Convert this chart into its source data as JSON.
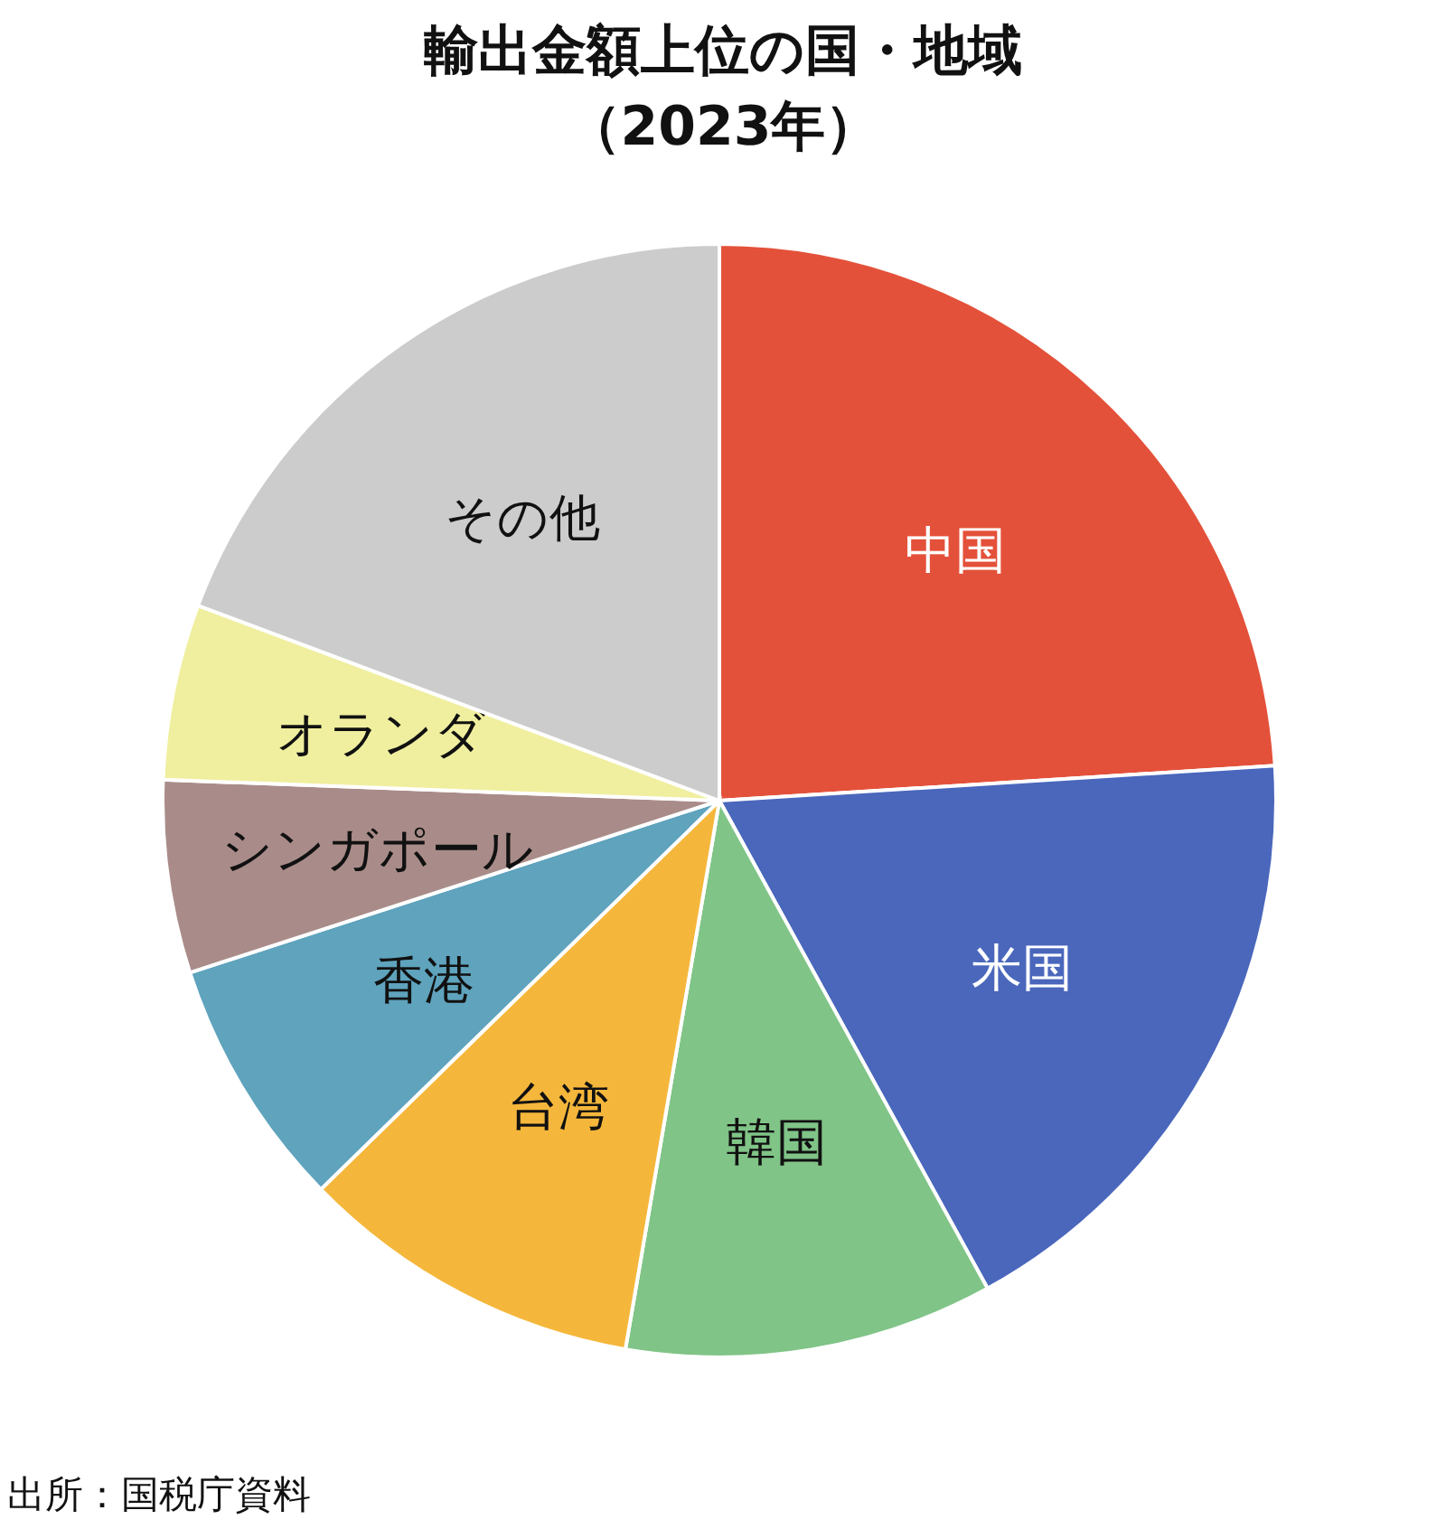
{
  "chart_data": {
    "type": "pie",
    "title": "輸出金額上位の国・地域",
    "subtitle": "（2023年）",
    "categories": [
      "中国",
      "米国",
      "韓国",
      "台湾",
      "香港",
      "シンガポール",
      "オランダ",
      "その他"
    ],
    "values": [
      24.0,
      18.0,
      10.7,
      10.0,
      7.3,
      5.6,
      5.1,
      19.3
    ],
    "colors": [
      "#e4513a",
      "#4a67bc",
      "#80c487",
      "#f5b73b",
      "#5fa3bd",
      "#a98c89",
      "#f0ef9f",
      "#cccccc"
    ],
    "annotations": [
      "出所：国税庁資料"
    ]
  }
}
